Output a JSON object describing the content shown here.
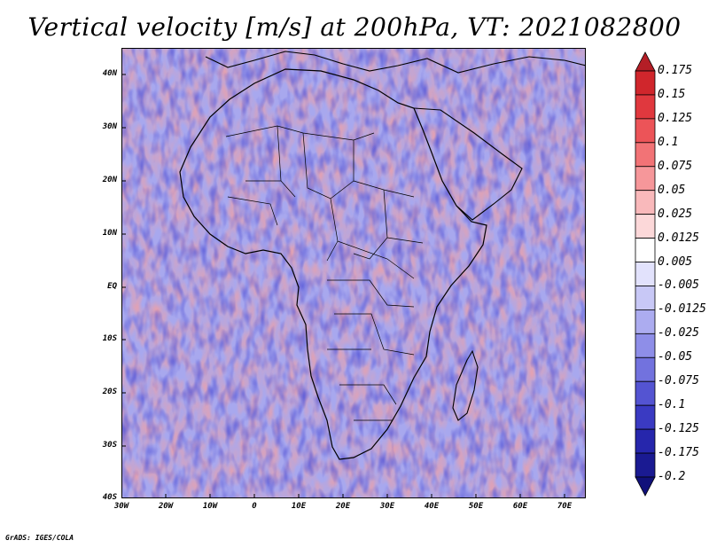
{
  "title": "Vertical velocity [m/s] at 200hPa, VT: 2021082800",
  "map": {
    "lon_range": [
      -30,
      75
    ],
    "lat_range": [
      -40,
      45
    ],
    "lat_ticks": [
      "40N",
      "30N",
      "20N",
      "10N",
      "EQ",
      "10S",
      "20S",
      "30S",
      "40S"
    ],
    "lon_ticks": [
      "30W",
      "20W",
      "10W",
      "0",
      "10E",
      "20E",
      "30E",
      "40E",
      "50E",
      "60E",
      "70E"
    ]
  },
  "colorbar": {
    "levels": [
      "0.175",
      "0.15",
      "0.125",
      "0.1",
      "0.075",
      "0.05",
      "0.025",
      "0.0125",
      "0.005",
      "-0.005",
      "-0.0125",
      "-0.025",
      "-0.05",
      "-0.075",
      "-0.1",
      "-0.125",
      "-0.175",
      "-0.2"
    ],
    "colors": [
      "#b41e26",
      "#d0262c",
      "#e0383e",
      "#ec5458",
      "#f27376",
      "#f6979a",
      "#f9b9bb",
      "#fcd8d9",
      "#ffffff",
      "#e2e2fc",
      "#c8c8f6",
      "#acacf0",
      "#8e8ee8",
      "#7272de",
      "#5454d2",
      "#3a3ac2",
      "#2626ac",
      "#1a1a92",
      "#10107a"
    ]
  },
  "credit": "GrADS: IGES/COLA"
}
